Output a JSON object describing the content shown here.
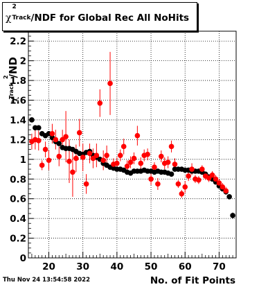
{
  "header": {
    "title_prefix": "χ",
    "title_sup": "2",
    "title_sub": "Track",
    "title_rest": "/NDF for Global Rec All NoHits"
  },
  "footer": {
    "timestamp": "Thu Nov 24 13:54:58 2022",
    "xlabel": "No. of Fit Points"
  },
  "chart_data": {
    "type": "scatter",
    "x_ticks": [
      20,
      30,
      40,
      50,
      60,
      70
    ],
    "y_ticks": [
      "0",
      "0.2",
      "0.4",
      "0.6",
      "0.8",
      "1",
      "1.2",
      "1.4",
      "1.6",
      "1.8",
      "2",
      "2.2"
    ],
    "ylabel_main": "/ND",
    "ylabel_chi": "χ",
    "ylabel_sup": "2",
    "ylabel_sub": "Track",
    "xlim": [
      14,
      75
    ],
    "ylim": [
      0,
      2.3
    ],
    "grid": true,
    "series": [
      {
        "color": "#000000",
        "points": [
          [
            15,
            1.4,
            0.02
          ],
          [
            16,
            1.32,
            0.02
          ],
          [
            17,
            1.32,
            0.02
          ],
          [
            18,
            1.26,
            0.02
          ],
          [
            19,
            1.24,
            0.02
          ],
          [
            20,
            1.26,
            0.02
          ],
          [
            21,
            1.22,
            0.02
          ],
          [
            22,
            1.18,
            0.02
          ],
          [
            23,
            1.16,
            0.02
          ],
          [
            24,
            1.12,
            0.02
          ],
          [
            25,
            1.11,
            0.02
          ],
          [
            26,
            1.11,
            0.02
          ],
          [
            27,
            1.1,
            0.02
          ],
          [
            28,
            1.08,
            0.02
          ],
          [
            29,
            1.06,
            0.02
          ],
          [
            30,
            1.05,
            0.02
          ],
          [
            31,
            1.07,
            0.02
          ],
          [
            32,
            1.08,
            0.02
          ],
          [
            33,
            1.04,
            0.02
          ],
          [
            34,
            1.02,
            0.02
          ],
          [
            35,
            1.0,
            0.02
          ],
          [
            36,
            0.96,
            0.02
          ],
          [
            37,
            0.94,
            0.02
          ],
          [
            38,
            0.92,
            0.02
          ],
          [
            39,
            0.91,
            0.02
          ],
          [
            40,
            0.9,
            0.02
          ],
          [
            41,
            0.9,
            0.02
          ],
          [
            42,
            0.89,
            0.02
          ],
          [
            43,
            0.87,
            0.02
          ],
          [
            44,
            0.86,
            0.02
          ],
          [
            45,
            0.88,
            0.02
          ],
          [
            46,
            0.88,
            0.02
          ],
          [
            47,
            0.88,
            0.02
          ],
          [
            48,
            0.89,
            0.02
          ],
          [
            49,
            0.88,
            0.02
          ],
          [
            50,
            0.88,
            0.02
          ],
          [
            51,
            0.87,
            0.02
          ],
          [
            52,
            0.88,
            0.02
          ],
          [
            53,
            0.87,
            0.02
          ],
          [
            54,
            0.87,
            0.02
          ],
          [
            55,
            0.86,
            0.02
          ],
          [
            56,
            0.85,
            0.02
          ],
          [
            57,
            0.9,
            0.02
          ],
          [
            58,
            0.9,
            0.02
          ],
          [
            59,
            0.9,
            0.02
          ],
          [
            60,
            0.89,
            0.02
          ],
          [
            61,
            0.89,
            0.02
          ],
          [
            62,
            0.88,
            0.02
          ],
          [
            63,
            0.88,
            0.02
          ],
          [
            64,
            0.88,
            0.02
          ],
          [
            65,
            0.87,
            0.02
          ],
          [
            66,
            0.85,
            0.02
          ],
          [
            67,
            0.82,
            0.02
          ],
          [
            68,
            0.8,
            0.02
          ],
          [
            69,
            0.77,
            0.02
          ],
          [
            70,
            0.73,
            0.02
          ],
          [
            71,
            0.7,
            0.02
          ],
          [
            72,
            0.67,
            0.02
          ],
          [
            73,
            0.62,
            0.02
          ],
          [
            74,
            0.43,
            0.03
          ]
        ]
      },
      {
        "color": "#ff0000",
        "points": [
          [
            15,
            1.18,
            0.08
          ],
          [
            16,
            1.2,
            0.1
          ],
          [
            17,
            1.19,
            0.1
          ],
          [
            18,
            0.94,
            0.05
          ],
          [
            19,
            1.1,
            0.08
          ],
          [
            20,
            0.99,
            0.1
          ],
          [
            21,
            1.26,
            0.1
          ],
          [
            22,
            1.2,
            0.1
          ],
          [
            23,
            1.03,
            0.1
          ],
          [
            24,
            1.2,
            0.1
          ],
          [
            25,
            1.23,
            0.26
          ],
          [
            26,
            0.98,
            0.22
          ],
          [
            27,
            0.87,
            0.25
          ],
          [
            28,
            1.01,
            0.14
          ],
          [
            29,
            1.27,
            0.14
          ],
          [
            30,
            1.02,
            0.14
          ],
          [
            31,
            0.75,
            0.1
          ],
          [
            32,
            1.06,
            0.1
          ],
          [
            33,
            1.01,
            0.1
          ],
          [
            34,
            1.04,
            0.12
          ],
          [
            35,
            1.57,
            0.14
          ],
          [
            36,
            0.99,
            0.1
          ],
          [
            37,
            1.04,
            0.1
          ],
          [
            38,
            1.77,
            0.32
          ],
          [
            39,
            0.95,
            0.06
          ],
          [
            40,
            0.96,
            0.06
          ],
          [
            41,
            1.04,
            0.06
          ],
          [
            42,
            1.13,
            0.08
          ],
          [
            43,
            0.93,
            0.06
          ],
          [
            44,
            0.97,
            0.06
          ],
          [
            45,
            1.01,
            0.06
          ],
          [
            46,
            1.24,
            0.1
          ],
          [
            47,
            0.96,
            0.06
          ],
          [
            48,
            1.04,
            0.06
          ],
          [
            49,
            1.05,
            0.06
          ],
          [
            50,
            0.8,
            0.06
          ],
          [
            51,
            0.92,
            0.05
          ],
          [
            52,
            0.75,
            0.06
          ],
          [
            53,
            1.03,
            0.06
          ],
          [
            54,
            0.96,
            0.06
          ],
          [
            55,
            0.97,
            0.06
          ],
          [
            56,
            1.13,
            0.06
          ],
          [
            57,
            0.95,
            0.06
          ],
          [
            58,
            0.75,
            0.04
          ],
          [
            59,
            0.65,
            0.04
          ],
          [
            60,
            0.72,
            0.06
          ],
          [
            61,
            0.83,
            0.05
          ],
          [
            62,
            0.9,
            0.06
          ],
          [
            63,
            0.8,
            0.04
          ],
          [
            64,
            0.79,
            0.04
          ],
          [
            65,
            0.9,
            0.04
          ],
          [
            66,
            0.83,
            0.04
          ],
          [
            67,
            0.81,
            0.04
          ],
          [
            68,
            0.84,
            0.04
          ],
          [
            69,
            0.8,
            0.04
          ],
          [
            70,
            0.76,
            0.04
          ],
          [
            71,
            0.72,
            0.04
          ],
          [
            72,
            0.68,
            0.04
          ]
        ]
      }
    ]
  }
}
